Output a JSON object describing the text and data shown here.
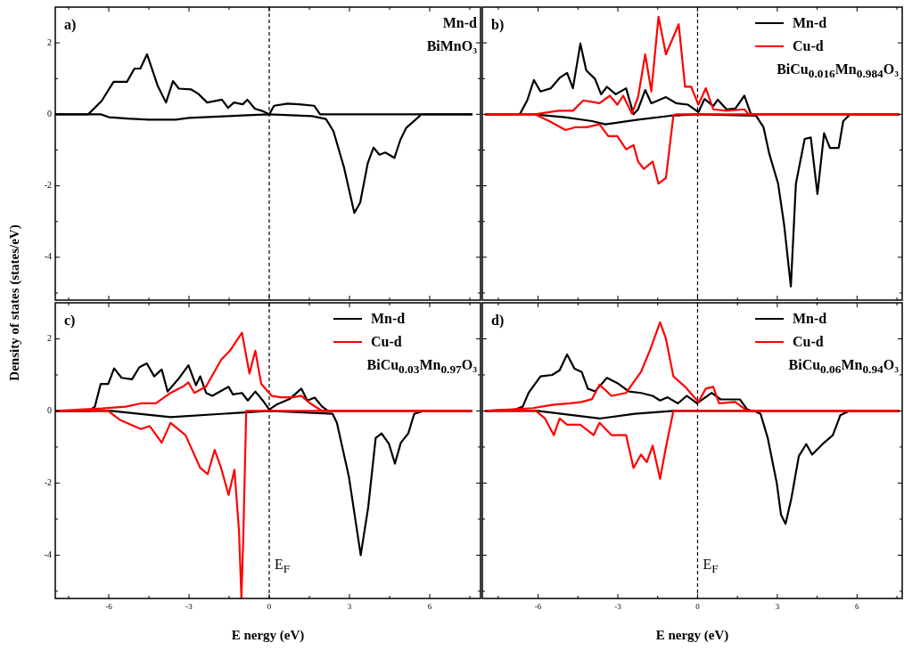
{
  "chart_data": [
    {
      "type": "line",
      "ylabel": "Density of states (states/eV)",
      "annotations": [
        "a)",
        "Mn-d",
        "BiMnO₃"
      ],
      "xlim": [
        -8,
        7.9
      ],
      "ylim": [
        -5.2,
        3
      ],
      "xticks": [
        {
          "value": -7.5,
          "label": null
        },
        -6,
        {
          "value": -4.5,
          "label": null
        },
        -3,
        {
          "value": -1.5,
          "label": null
        },
        0,
        {
          "value": 1.5,
          "label": null
        },
        3,
        {
          "value": 4.5,
          "label": null
        },
        6,
        {
          "value": 7.5,
          "label": null
        }
      ],
      "yticks": [
        {
          "value": -5,
          "label": null
        },
        -4,
        {
          "value": -3,
          "label": null
        },
        -2,
        {
          "value": -1,
          "label": null
        },
        0,
        {
          "value": 1,
          "label": null
        },
        2
      ],
      "tick_labels": "y",
      "marker": "none",
      "ref_lines": [
        {
          "axis": "x",
          "value": 0,
          "color": "#000000",
          "line_style": "dashed"
        }
      ],
      "series": [
        {
          "color": "#000000",
          "x": [
            -8,
            -6.77,
            -6.27,
            -5.82,
            -5.32,
            -5.04,
            -4.82,
            -4.57,
            -4.16,
            -3.86,
            -3.6,
            -3.38,
            -2.93,
            -2.66,
            -2.32,
            -1.77,
            -1.54,
            -1.32,
            -0.99,
            -0.82,
            -0.54,
            -0.21,
            0,
            0.18,
            0.68,
            1.12,
            1.68,
            1.9,
            7.6
          ],
          "values": [
            0,
            0,
            0.37,
            0.91,
            0.91,
            1.28,
            1.28,
            1.68,
            0.78,
            0.33,
            0.93,
            0.72,
            0.7,
            0.58,
            0.33,
            0.41,
            0.18,
            0.33,
            0.28,
            0.41,
            0.16,
            0.08,
            0,
            0.24,
            0.3,
            0.28,
            0.24,
            0,
            0
          ]
        },
        {
          "color": "#000000",
          "x": [
            -8,
            -6.3,
            -6,
            -5.3,
            -4.5,
            -3.5,
            -3,
            -1.5,
            -1,
            0,
            1.6,
            2.12,
            2.4,
            2.79,
            3.18,
            3.4,
            3.68,
            3.9,
            4.12,
            4.34,
            4.68,
            4.9,
            5.12,
            5.62,
            5.68,
            7.6
          ],
          "values": [
            0,
            0,
            -0.08,
            -0.12,
            -0.15,
            -0.15,
            -0.1,
            -0.05,
            -0.03,
            0,
            -0.05,
            -0.13,
            -0.47,
            -1.47,
            -2.76,
            -2.47,
            -1.38,
            -0.93,
            -1.13,
            -1.07,
            -1.22,
            -0.72,
            -0.38,
            -0.05,
            0,
            0
          ]
        }
      ]
    },
    {
      "type": "line",
      "annotations": [
        "b)",
        "BiCu$_{0.016}$Mn$_{0.984}$O₃"
      ],
      "xlim": [
        -8.1,
        7.7
      ],
      "ylim": [
        -5.2,
        3
      ],
      "xticks": [
        {
          "value": -7.5,
          "label": null
        },
        -6,
        {
          "value": -4.5,
          "label": null
        },
        -3,
        {
          "value": -1.5,
          "label": null
        },
        0,
        {
          "value": 1.5,
          "label": null
        },
        3,
        {
          "value": 4.5,
          "label": null
        },
        6,
        {
          "value": 7.5,
          "label": null
        }
      ],
      "yticks": [
        {
          "value": -5,
          "label": null
        },
        -4,
        {
          "value": -3,
          "label": null
        },
        -2,
        {
          "value": -1,
          "label": null
        },
        0,
        {
          "value": 1,
          "label": null
        },
        2
      ],
      "tick_labels": false,
      "marker": "none",
      "legend": "top right",
      "ref_lines": [
        {
          "axis": "x",
          "value": 0,
          "color": "#000000",
          "line_style": "dashed"
        }
      ],
      "series": [
        {
          "name": "Mn-d",
          "color": "#000000",
          "x": [
            -8,
            -6.69,
            -6.41,
            -6.16,
            -5.91,
            -5.52,
            -5.19,
            -4.91,
            -4.69,
            -4.41,
            -4.19,
            -3.86,
            -3.63,
            -3.41,
            -3.08,
            -2.69,
            -2.41,
            -2.24,
            -1.97,
            -1.74,
            -1.19,
            -0.8,
            -0.36,
            0.03,
            0.26,
            0.59,
            0.76,
            1.09,
            1.42,
            1.76,
            1.98,
            2.03,
            7.6
          ],
          "values": [
            0,
            0,
            0.39,
            0.96,
            0.64,
            0.73,
            1.02,
            1.16,
            0.73,
            1.98,
            1.23,
            0.99,
            0.56,
            0.77,
            0.56,
            0.73,
            0,
            0.14,
            0.68,
            0.31,
            0.48,
            0.31,
            0.27,
            0.06,
            0.43,
            0.23,
            0.41,
            0.14,
            0.16,
            0.52,
            0.06,
            0,
            0
          ]
        },
        {
          "color": "#000000",
          "x": [
            -8,
            -6.2,
            -5,
            -3.97,
            -3.47,
            -2.24,
            -1.02,
            0,
            2.2,
            2.48,
            2.7,
            3.03,
            3.26,
            3.51,
            3.7,
            4.03,
            4.26,
            4.51,
            4.76,
            4.98,
            5.31,
            5.48,
            5.7,
            5.76,
            7.6
          ],
          "values": [
            0,
            0,
            -0.08,
            -0.19,
            -0.28,
            -0.15,
            -0.04,
            0,
            -0.04,
            -0.36,
            -1.11,
            -1.94,
            -3.11,
            -4.82,
            -1.94,
            -0.69,
            -0.65,
            -2.23,
            -0.53,
            -0.94,
            -0.94,
            -0.19,
            -0.03,
            0,
            0
          ]
        },
        {
          "name": "Cu-d",
          "color": "#ff0000",
          "x": [
            -8,
            -6.13,
            -5.24,
            -4.69,
            -4.3,
            -3.69,
            -3.3,
            -3.02,
            -2.8,
            -2.47,
            -2.24,
            -1.97,
            -1.74,
            -1.47,
            -1.19,
            -0.71,
            -0.47,
            -0.24,
            0.03,
            0.31,
            0.59,
            1.09,
            1.76,
            1.92,
            7.6
          ],
          "values": [
            0,
            0,
            0.1,
            0.1,
            0.39,
            0.31,
            0.52,
            0.27,
            0.52,
            0.02,
            0.48,
            1.68,
            0.64,
            2.73,
            1.68,
            2.52,
            0.77,
            0.77,
            0.27,
            0.73,
            0.14,
            0.1,
            0.14,
            0,
            0
          ]
        },
        {
          "color": "#ff0000",
          "x": [
            -8,
            -6.13,
            -5.58,
            -4.97,
            -4.58,
            -4.19,
            -3.69,
            -3.36,
            -3.02,
            -2.69,
            -2.41,
            -2.24,
            -2.02,
            -1.69,
            -1.47,
            -1.19,
            -0.91,
            -0.8,
            7.6
          ],
          "values": [
            0,
            0,
            -0.19,
            -0.44,
            -0.36,
            -0.36,
            -0.28,
            -0.61,
            -0.61,
            -0.98,
            -0.86,
            -1.32,
            -1.53,
            -1.32,
            -1.94,
            -1.78,
            -0.03,
            0,
            0
          ]
        }
      ]
    },
    {
      "type": "line",
      "xlabel": "E nergy (eV)",
      "annotations": [
        "c)",
        "BiCu$_{0.03}$Mn$_{0.97}$O₃"
      ],
      "xlim": [
        -8,
        7.9
      ],
      "ylim": [
        -5.2,
        3
      ],
      "xticks": [
        {
          "value": -7.5,
          "label": null
        },
        -6,
        {
          "value": -4.5,
          "label": null
        },
        -3,
        {
          "value": -1.5,
          "label": null
        },
        0,
        {
          "value": 1.5,
          "label": null
        },
        3,
        {
          "value": 4.5,
          "label": null
        },
        6,
        {
          "value": 7.5,
          "label": null
        }
      ],
      "yticks": [
        {
          "value": -5,
          "label": null
        },
        -4,
        {
          "value": -3,
          "label": null
        },
        -2,
        {
          "value": -1,
          "label": null
        },
        0,
        {
          "value": 1,
          "label": null
        },
        2
      ],
      "marker": "none",
      "legend": "top right",
      "ref_lines": [
        {
          "axis": "x",
          "value": 0,
          "label": "E$_{F}$",
          "color": "#000000",
          "line_style": "dashed"
        }
      ],
      "series": [
        {
          "name": "Mn-d",
          "color": "#000000",
          "x": [
            -8,
            -6.74,
            -6.52,
            -6.3,
            -6.02,
            -5.8,
            -5.52,
            -5.13,
            -4.86,
            -4.58,
            -4.3,
            -4.02,
            -3.8,
            -3.36,
            -3.02,
            -2.74,
            -2.58,
            -2.36,
            -2.13,
            -1.52,
            -1.36,
            -1.02,
            -0.8,
            -0.52,
            -0.24,
            0,
            0.26,
            0.76,
            1.2,
            1.42,
            1.7,
            1.98,
            2.2,
            7.6
          ],
          "values": [
            0,
            0,
            0.12,
            0.75,
            0.75,
            1.18,
            0.92,
            0.88,
            1.21,
            1.32,
            0.96,
            1.15,
            0.54,
            0.92,
            1.27,
            0.71,
            0.96,
            0.5,
            0.42,
            0.67,
            0.46,
            0.5,
            0.29,
            0.54,
            0.29,
            0.04,
            0.17,
            0.33,
            0.62,
            0.29,
            0.37,
            0.12,
            0,
            0
          ]
        },
        {
          "color": "#000000",
          "x": [
            -8,
            -5.91,
            -3.69,
            -0.91,
            0,
            2.37,
            2.53,
            2.98,
            3.42,
            3.7,
            3.98,
            4.2,
            4.48,
            4.7,
            4.92,
            5.2,
            5.42,
            5.76,
            7.6
          ],
          "values": [
            0,
            0,
            -0.17,
            -0.04,
            0,
            -0.08,
            -0.33,
            -1.83,
            -4.0,
            -2.67,
            -0.75,
            -0.62,
            -0.92,
            -1.46,
            -0.88,
            -0.62,
            -0.08,
            0,
            0
          ]
        },
        {
          "name": "Cu-d",
          "color": "#ff0000",
          "x": [
            -8,
            -6.24,
            -5.36,
            -4.8,
            -4.24,
            -3.69,
            -3.24,
            -3.02,
            -2.8,
            -2.36,
            -1.8,
            -1.47,
            -1.02,
            -0.74,
            -0.52,
            -0.3,
            0.09,
            0.42,
            0.87,
            1.2,
            1.53,
            1.98,
            7.6
          ],
          "values": [
            0,
            0.07,
            0.12,
            0.21,
            0.21,
            0.5,
            0.67,
            0.79,
            0.5,
            0.68,
            1.42,
            1.67,
            2.17,
            1.04,
            1.67,
            0.75,
            0.42,
            0.38,
            0.38,
            0.42,
            0.21,
            0,
            0
          ]
        },
        {
          "color": "#ff0000",
          "x": [
            -8,
            -6.02,
            -5.58,
            -4.8,
            -4.47,
            -4.02,
            -3.69,
            -3.13,
            -2.58,
            -2.3,
            -2.04,
            -1.8,
            -1.52,
            -1.3,
            -1.13,
            -1.04,
            -0.97,
            -0.86,
            7.6
          ],
          "values": [
            0,
            0,
            -0.25,
            -0.5,
            -0.42,
            -0.88,
            -0.33,
            -0.67,
            -1.58,
            -1.75,
            -1.08,
            -1.58,
            -2.33,
            -1.63,
            -3.33,
            -5.2,
            -3.5,
            0,
            0
          ]
        }
      ]
    },
    {
      "type": "line",
      "xlabel": "E nergy (eV)",
      "annotations": [
        "d)",
        "BiCu$_{0.06}$Mn$_{0.94}$O₃"
      ],
      "xlim": [
        -8.1,
        7.7
      ],
      "ylim": [
        -5.2,
        3
      ],
      "xticks": [
        {
          "value": -7.5,
          "label": null
        },
        -6,
        {
          "value": -4.5,
          "label": null
        },
        -3,
        {
          "value": -1.5,
          "label": null
        },
        0,
        {
          "value": 1.5,
          "label": null
        },
        3,
        {
          "value": 4.5,
          "label": null
        },
        6,
        {
          "value": 7.5,
          "label": null
        }
      ],
      "yticks": [
        {
          "value": -5,
          "label": null
        },
        -4,
        {
          "value": -3,
          "label": null
        },
        -2,
        {
          "value": -1,
          "label": null
        },
        0,
        {
          "value": 1,
          "label": null
        },
        2
      ],
      "tick_labels": "x",
      "marker": "none",
      "legend": "top right",
      "ref_lines": [
        {
          "axis": "x",
          "value": 0,
          "label": "E$_{F}$",
          "color": "#000000",
          "line_style": "dashed"
        }
      ],
      "series": [
        {
          "name": "Mn-d",
          "color": "#000000",
          "x": [
            -8,
            -6.86,
            -6.58,
            -6.36,
            -5.91,
            -5.47,
            -5.19,
            -4.91,
            -4.63,
            -4.36,
            -4.13,
            -3.86,
            -3.41,
            -2.97,
            -2.58,
            -2.13,
            -1.69,
            -1.41,
            -1.13,
            -0.74,
            -0.41,
            -0.02,
            0.53,
            0.87,
            1.59,
            1.87,
            2.09,
            7.6
          ],
          "values": [
            0,
            0.04,
            0.12,
            0.5,
            0.96,
            1.0,
            1.13,
            1.57,
            1.17,
            1.08,
            0.62,
            0.54,
            0.92,
            0.75,
            0.54,
            0.5,
            0.42,
            0.29,
            0.38,
            0.21,
            0.42,
            0.21,
            0.5,
            0.32,
            0.32,
            0.04,
            0,
            0
          ]
        },
        {
          "color": "#000000",
          "x": [
            -8,
            -6.02,
            -3.69,
            -2.36,
            -0.91,
            2.14,
            2.37,
            2.64,
            2.98,
            3.14,
            3.31,
            3.53,
            3.81,
            4.09,
            4.31,
            4.76,
            5.09,
            5.37,
            5.7,
            7.6
          ],
          "values": [
            0,
            0,
            -0.21,
            -0.08,
            0,
            0,
            -0.08,
            -0.75,
            -2.0,
            -2.88,
            -3.13,
            -2.42,
            -1.25,
            -0.92,
            -1.21,
            -0.88,
            -0.67,
            -0.12,
            0,
            0
          ]
        },
        {
          "name": "Cu-d",
          "color": "#ff0000",
          "x": [
            -8,
            -6.19,
            -5.47,
            -4.8,
            -4.36,
            -3.97,
            -3.69,
            -3.24,
            -2.69,
            -2.13,
            -1.8,
            -1.41,
            -1.19,
            -0.91,
            -0.47,
            0.03,
            0.31,
            0.59,
            0.81,
            1.42,
            1.87,
            7.6
          ],
          "values": [
            0,
            0.08,
            0.17,
            0.21,
            0.25,
            0.33,
            0.73,
            0.42,
            0.5,
            1.08,
            1.67,
            2.46,
            2.0,
            0.96,
            0.67,
            0.25,
            0.62,
            0.67,
            0.21,
            0.25,
            0,
            0
          ]
        },
        {
          "color": "#ff0000",
          "x": [
            -8,
            -6.08,
            -5.74,
            -5.41,
            -5.19,
            -4.91,
            -4.41,
            -3.91,
            -3.69,
            -3.24,
            -2.69,
            -2.41,
            -2.13,
            -1.91,
            -1.69,
            -1.41,
            -1.19,
            -0.91,
            7.6
          ],
          "values": [
            0,
            0,
            -0.21,
            -0.67,
            -0.21,
            -0.38,
            -0.38,
            -0.67,
            -0.33,
            -0.67,
            -0.67,
            -1.58,
            -1.21,
            -1.42,
            -0.96,
            -1.88,
            -1.0,
            0,
            0
          ]
        }
      ]
    }
  ]
}
